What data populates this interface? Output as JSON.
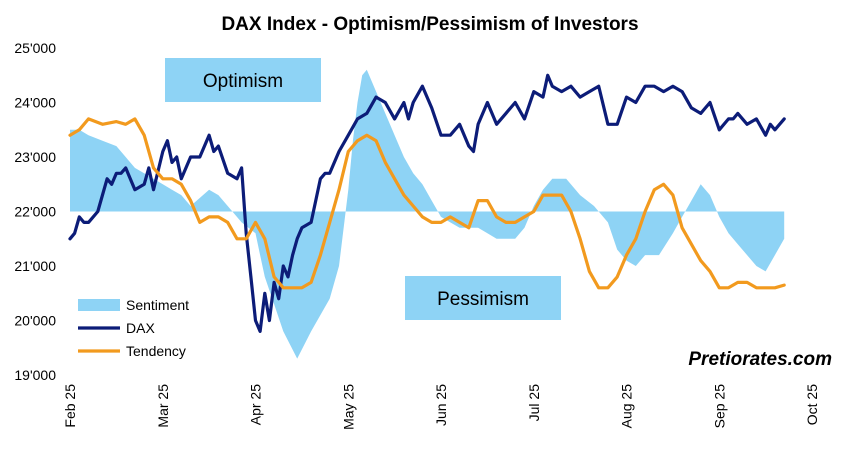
{
  "chart_data": {
    "type": "area+line",
    "title": "DAX Index - Optimism/Pessimism of Investors",
    "xlabel": "",
    "ylabel": "",
    "ylim": [
      19000,
      25000
    ],
    "xlim": [
      0,
      8
    ],
    "y_ticks": [
      "19'000",
      "20'000",
      "21'000",
      "22'000",
      "23'000",
      "24'000",
      "25'000"
    ],
    "y_tick_values": [
      19000,
      20000,
      21000,
      22000,
      23000,
      24000,
      25000
    ],
    "x_ticks": [
      "Feb 25",
      "Mar 25",
      "Apr 25",
      "May 25",
      "Jun 25",
      "Jul 25",
      "Aug 25",
      "Sep 25",
      "Oct 25"
    ],
    "x_tick_values": [
      0,
      1,
      2,
      3,
      4,
      5,
      6,
      7,
      8
    ],
    "sentiment_baseline": 22000,
    "annotations": {
      "optimism": "Optimism",
      "pessimism": "Pessimism"
    },
    "legend": [
      "Sentiment",
      "DAX",
      "Tendency"
    ],
    "colors": {
      "sentiment": "#8ed3f5",
      "dax": "#0c1c78",
      "tendency": "#f29a1e",
      "box": "#8ed3f5"
    },
    "series": [
      {
        "name": "Sentiment",
        "type": "area",
        "x": [
          0,
          0.1,
          0.2,
          0.35,
          0.5,
          0.7,
          0.9,
          1.0,
          1.1,
          1.2,
          1.3,
          1.5,
          1.6,
          1.7,
          1.85,
          2.0,
          2.05,
          2.1,
          2.2,
          2.3,
          2.45,
          2.6,
          2.8,
          2.9,
          3.0,
          3.05,
          3.1,
          3.15,
          3.2,
          3.3,
          3.4,
          3.5,
          3.6,
          3.7,
          3.8,
          3.9,
          4.0,
          4.1,
          4.2,
          4.4,
          4.5,
          4.6,
          4.8,
          4.9,
          5.0,
          5.1,
          5.2,
          5.35,
          5.5,
          5.65,
          5.8,
          5.9,
          6.0,
          6.1,
          6.2,
          6.35,
          6.5,
          6.6,
          6.7,
          6.8,
          6.9,
          7.0,
          7.1,
          7.2,
          7.3,
          7.4,
          7.5,
          7.6,
          7.7
        ],
        "values": [
          23500,
          23500,
          23400,
          23300,
          23200,
          22800,
          22600,
          22500,
          22400,
          22300,
          22100,
          22400,
          22300,
          22100,
          21800,
          21600,
          21200,
          20800,
          20300,
          19800,
          19300,
          19800,
          20400,
          21000,
          22400,
          23300,
          24000,
          24500,
          24600,
          24200,
          23800,
          23400,
          23000,
          22700,
          22500,
          22200,
          21900,
          21800,
          21700,
          21700,
          21600,
          21500,
          21500,
          21700,
          22100,
          22400,
          22600,
          22600,
          22300,
          22100,
          21800,
          21300,
          21100,
          21000,
          21200,
          21200,
          21600,
          21900,
          22200,
          22500,
          22300,
          21900,
          21600,
          21400,
          21200,
          21000,
          20900,
          21200,
          21500
        ]
      },
      {
        "name": "DAX",
        "type": "line",
        "x": [
          0,
          0.05,
          0.1,
          0.15,
          0.2,
          0.3,
          0.4,
          0.45,
          0.5,
          0.55,
          0.6,
          0.7,
          0.8,
          0.85,
          0.9,
          1.0,
          1.05,
          1.1,
          1.15,
          1.2,
          1.3,
          1.4,
          1.5,
          1.55,
          1.6,
          1.7,
          1.8,
          1.85,
          1.9,
          1.95,
          2.0,
          2.05,
          2.1,
          2.15,
          2.2,
          2.25,
          2.3,
          2.35,
          2.4,
          2.45,
          2.5,
          2.6,
          2.7,
          2.75,
          2.8,
          2.9,
          3.0,
          3.1,
          3.2,
          3.3,
          3.4,
          3.5,
          3.6,
          3.65,
          3.7,
          3.8,
          3.9,
          4.0,
          4.1,
          4.2,
          4.3,
          4.35,
          4.4,
          4.5,
          4.6,
          4.7,
          4.8,
          4.9,
          5.0,
          5.1,
          5.15,
          5.2,
          5.3,
          5.4,
          5.5,
          5.6,
          5.7,
          5.8,
          5.9,
          6.0,
          6.1,
          6.2,
          6.3,
          6.4,
          6.5,
          6.6,
          6.7,
          6.8,
          6.9,
          7.0,
          7.1,
          7.15,
          7.2,
          7.3,
          7.4,
          7.5,
          7.55,
          7.6,
          7.7
        ],
        "values": [
          21500,
          21600,
          21900,
          21800,
          21800,
          22000,
          22600,
          22500,
          22700,
          22700,
          22800,
          22400,
          22500,
          22800,
          22400,
          23100,
          23300,
          22900,
          23000,
          22600,
          23000,
          23000,
          23400,
          23100,
          23200,
          22700,
          22600,
          22800,
          21600,
          20800,
          20000,
          19800,
          20500,
          20000,
          20700,
          20400,
          21000,
          20800,
          21200,
          21500,
          21700,
          21800,
          22600,
          22700,
          22700,
          23100,
          23400,
          23700,
          23800,
          24100,
          24000,
          23700,
          24000,
          23700,
          24000,
          24300,
          23900,
          23400,
          23400,
          23600,
          23200,
          23100,
          23600,
          24000,
          23600,
          23800,
          24000,
          23700,
          24200,
          24100,
          24500,
          24300,
          24200,
          24300,
          24100,
          24200,
          24300,
          23600,
          23600,
          24100,
          24000,
          24300,
          24300,
          24200,
          24300,
          24200,
          23900,
          23800,
          24000,
          23500,
          23700,
          23700,
          23800,
          23600,
          23700,
          23400,
          23600,
          23500,
          23700
        ]
      },
      {
        "name": "Tendency",
        "type": "line",
        "x": [
          0,
          0.1,
          0.2,
          0.35,
          0.5,
          0.6,
          0.7,
          0.8,
          0.9,
          1.0,
          1.1,
          1.2,
          1.3,
          1.4,
          1.5,
          1.6,
          1.7,
          1.8,
          1.9,
          2.0,
          2.1,
          2.2,
          2.3,
          2.4,
          2.5,
          2.6,
          2.7,
          2.8,
          2.9,
          3.0,
          3.1,
          3.2,
          3.3,
          3.4,
          3.5,
          3.6,
          3.7,
          3.8,
          3.9,
          4.0,
          4.1,
          4.2,
          4.3,
          4.4,
          4.5,
          4.6,
          4.7,
          4.8,
          4.9,
          5.0,
          5.1,
          5.2,
          5.3,
          5.4,
          5.5,
          5.6,
          5.7,
          5.8,
          5.9,
          6.0,
          6.1,
          6.2,
          6.3,
          6.4,
          6.5,
          6.6,
          6.7,
          6.8,
          6.9,
          7.0,
          7.1,
          7.2,
          7.3,
          7.4,
          7.5,
          7.6,
          7.7
        ],
        "values": [
          23400,
          23500,
          23700,
          23600,
          23650,
          23600,
          23700,
          23400,
          22800,
          22600,
          22600,
          22500,
          22200,
          21800,
          21900,
          21900,
          21800,
          21500,
          21500,
          21800,
          21500,
          20800,
          20600,
          20600,
          20600,
          20700,
          21200,
          21800,
          22400,
          23100,
          23300,
          23400,
          23300,
          22900,
          22600,
          22300,
          22100,
          21900,
          21800,
          21800,
          21900,
          21800,
          21700,
          22200,
          22200,
          21900,
          21800,
          21800,
          21900,
          22000,
          22300,
          22300,
          22300,
          22000,
          21500,
          20900,
          20600,
          20600,
          20800,
          21200,
          21500,
          22000,
          22400,
          22500,
          22300,
          21700,
          21400,
          21100,
          20900,
          20600,
          20600,
          20700,
          20700,
          20600,
          20600,
          20600,
          20650
        ]
      }
    ]
  },
  "brand": "Pretiorates.com"
}
